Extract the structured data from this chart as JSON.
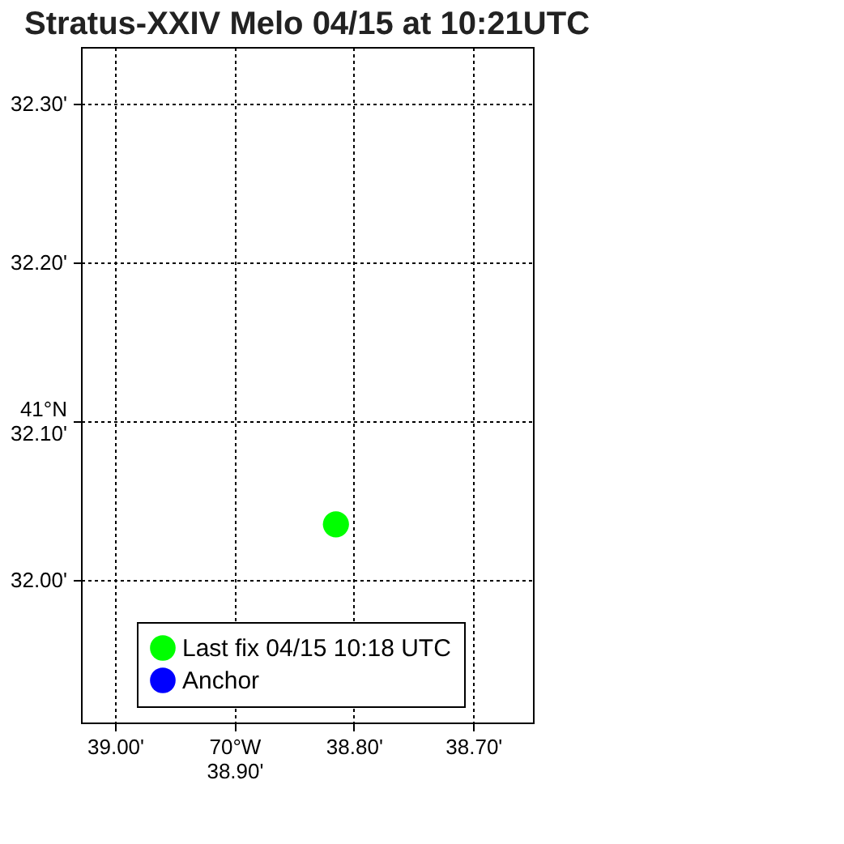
{
  "chart_data": {
    "type": "scatter",
    "title": "Stratus-XXIV Melo 04/15 at 10:21UTC",
    "series": [
      {
        "name": "Last fix 04/15 10:18 UTC",
        "color": "#00ff00",
        "x": [
          38.815
        ],
        "values": [
          32.035
        ]
      },
      {
        "name": "Anchor",
        "color": "#0000ff",
        "x": [
          null
        ],
        "values": [
          null
        ]
      }
    ],
    "xlim": [
      39.0285,
      38.65
    ],
    "xticks": [
      {
        "value": 39.0,
        "label": "39.00'"
      },
      {
        "value": 38.9,
        "label": "70°W\n38.90'"
      },
      {
        "value": 38.8,
        "label": "38.80'"
      },
      {
        "value": 38.7,
        "label": "38.70'"
      }
    ],
    "ylim": [
      31.91,
      32.336
    ],
    "yticks": [
      {
        "value": 32.0,
        "label": "32.00'"
      },
      {
        "value": 32.1,
        "label": "41°N\n32.10'"
      },
      {
        "value": 32.2,
        "label": "32.20'"
      },
      {
        "value": 32.3,
        "label": "32.30'"
      }
    ],
    "grid": true,
    "legend": "bottom",
    "marker": "circle"
  }
}
